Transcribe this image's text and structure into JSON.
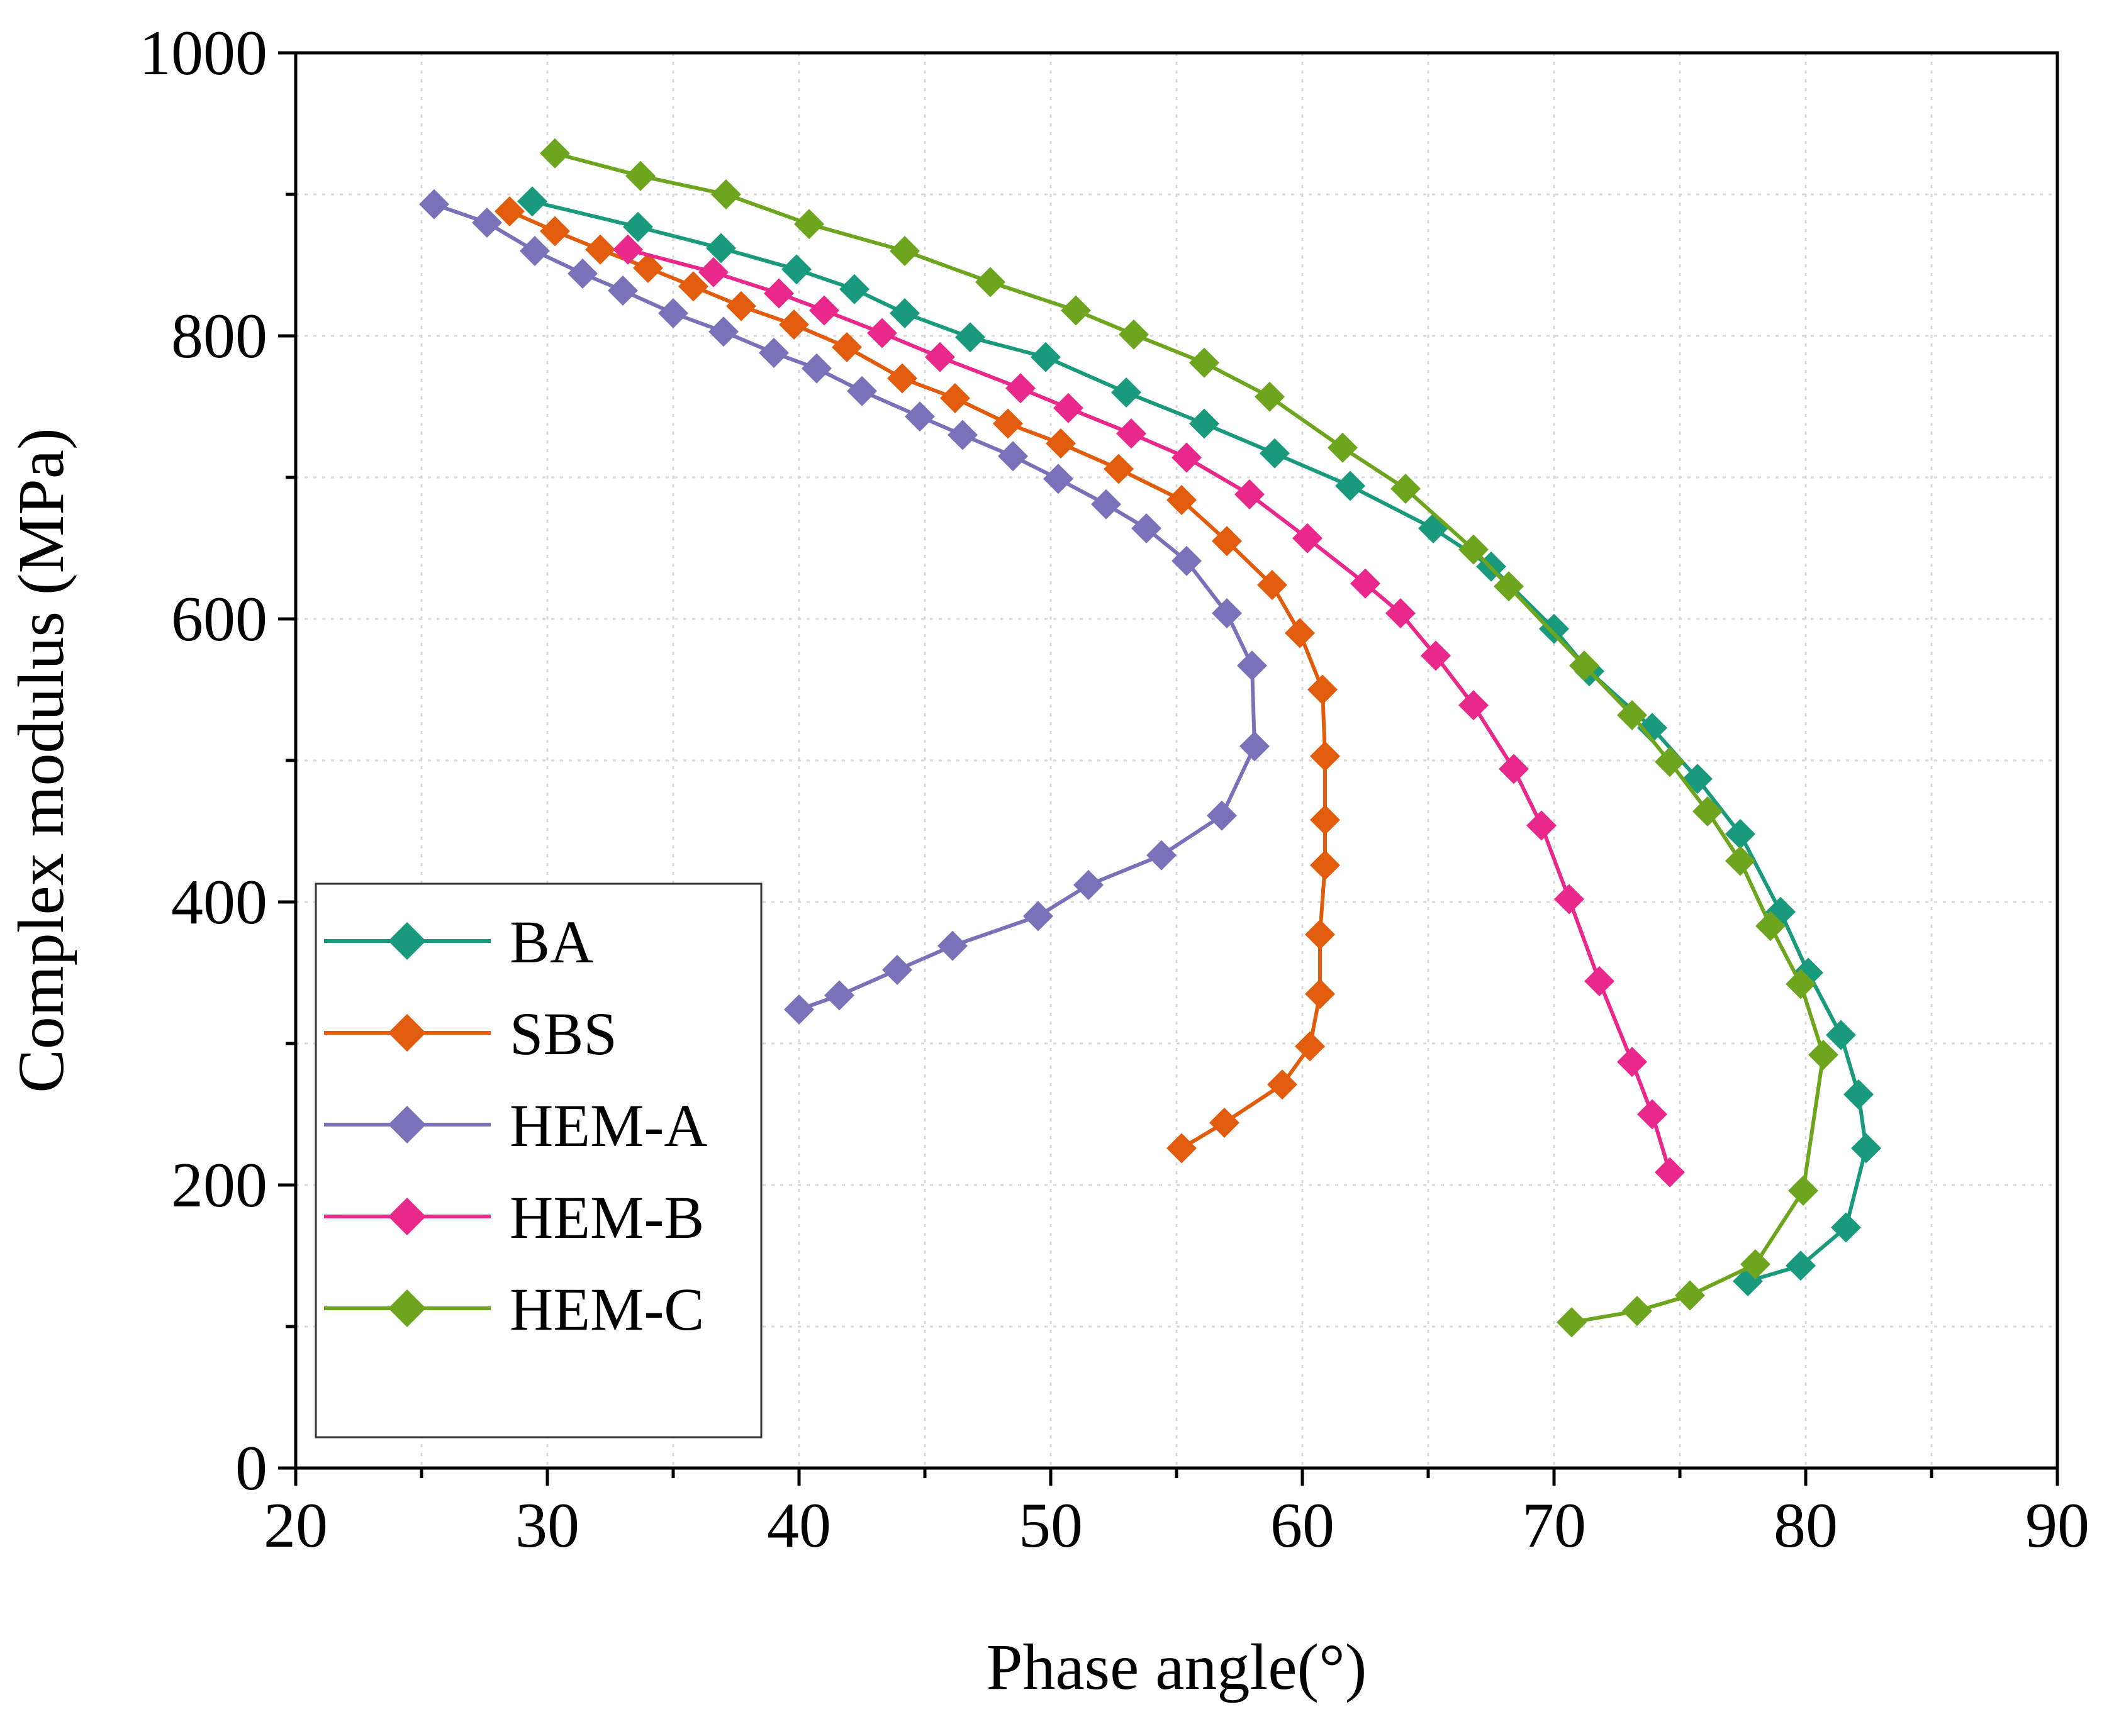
{
  "chart_data": {
    "type": "line",
    "title": "",
    "xlabel": "Phase angle(°)",
    "ylabel": "Complex modulus (MPa)",
    "xlim": [
      20,
      90
    ],
    "ylim": [
      0,
      1000
    ],
    "xticks": [
      20,
      30,
      40,
      50,
      60,
      70,
      80,
      90
    ],
    "yticks": [
      0,
      200,
      400,
      600,
      800,
      1000
    ],
    "grid": true,
    "legend_position": "bottom-left",
    "marker": "diamond",
    "series": [
      {
        "name": "BA",
        "color": "#1a9a7c",
        "points": [
          [
            29.4,
            895
          ],
          [
            33.6,
            877
          ],
          [
            36.9,
            862
          ],
          [
            39.9,
            847
          ],
          [
            42.2,
            833
          ],
          [
            44.2,
            816
          ],
          [
            46.8,
            799
          ],
          [
            49.8,
            785
          ],
          [
            53.0,
            760
          ],
          [
            56.1,
            738
          ],
          [
            58.9,
            717
          ],
          [
            61.9,
            694
          ],
          [
            65.2,
            664
          ],
          [
            67.5,
            637
          ],
          [
            70.0,
            593
          ],
          [
            71.4,
            563
          ],
          [
            73.9,
            523
          ],
          [
            75.7,
            487
          ],
          [
            77.4,
            448
          ],
          [
            79.0,
            393
          ],
          [
            80.1,
            350
          ],
          [
            81.4,
            306
          ],
          [
            82.1,
            264
          ],
          [
            82.4,
            226
          ],
          [
            81.6,
            170
          ],
          [
            79.8,
            143
          ],
          [
            77.7,
            132
          ]
        ]
      },
      {
        "name": "SBS",
        "color": "#e15c0c",
        "points": [
          [
            28.5,
            888
          ],
          [
            30.3,
            874
          ],
          [
            32.1,
            861
          ],
          [
            34.0,
            848
          ],
          [
            35.8,
            835
          ],
          [
            37.7,
            821
          ],
          [
            39.8,
            808
          ],
          [
            41.9,
            792
          ],
          [
            44.1,
            770
          ],
          [
            46.2,
            756
          ],
          [
            48.3,
            738
          ],
          [
            50.4,
            724
          ],
          [
            52.7,
            706
          ],
          [
            55.2,
            684
          ],
          [
            57.0,
            655
          ],
          [
            58.8,
            624
          ],
          [
            59.9,
            590
          ],
          [
            60.8,
            550
          ],
          [
            60.9,
            503
          ],
          [
            60.9,
            458
          ],
          [
            60.9,
            426
          ],
          [
            60.7,
            377
          ],
          [
            60.7,
            335
          ],
          [
            60.3,
            298
          ],
          [
            59.2,
            271
          ],
          [
            56.9,
            244
          ],
          [
            55.2,
            226
          ]
        ]
      },
      {
        "name": "HEM-A",
        "color": "#7a72b8",
        "points": [
          [
            25.5,
            893
          ],
          [
            27.6,
            880
          ],
          [
            29.5,
            860
          ],
          [
            31.4,
            844
          ],
          [
            33.0,
            832
          ],
          [
            35.0,
            816
          ],
          [
            37.0,
            803
          ],
          [
            39.0,
            788
          ],
          [
            40.7,
            777
          ],
          [
            42.5,
            761
          ],
          [
            44.8,
            743
          ],
          [
            46.5,
            730
          ],
          [
            48.5,
            715
          ],
          [
            50.3,
            699
          ],
          [
            52.2,
            681
          ],
          [
            53.8,
            664
          ],
          [
            55.4,
            641
          ],
          [
            57.0,
            604
          ],
          [
            58.0,
            567
          ],
          [
            58.1,
            510
          ],
          [
            56.8,
            461
          ],
          [
            54.4,
            433
          ],
          [
            51.5,
            412
          ],
          [
            49.5,
            390
          ],
          [
            46.1,
            369
          ],
          [
            43.9,
            352
          ],
          [
            41.6,
            334
          ],
          [
            40.0,
            324
          ]
        ]
      },
      {
        "name": "HEM-B",
        "color": "#e8288a",
        "points": [
          [
            33.2,
            861
          ],
          [
            36.6,
            845
          ],
          [
            39.2,
            830
          ],
          [
            41.0,
            818
          ],
          [
            43.3,
            802
          ],
          [
            45.6,
            785
          ],
          [
            48.8,
            763
          ],
          [
            50.7,
            749
          ],
          [
            53.2,
            731
          ],
          [
            55.4,
            714
          ],
          [
            57.9,
            688
          ],
          [
            60.2,
            657
          ],
          [
            62.5,
            625
          ],
          [
            63.9,
            604
          ],
          [
            65.3,
            574
          ],
          [
            66.8,
            539
          ],
          [
            68.4,
            494
          ],
          [
            69.5,
            454
          ],
          [
            70.6,
            402
          ],
          [
            71.8,
            344
          ],
          [
            73.1,
            287
          ],
          [
            73.9,
            250
          ],
          [
            74.6,
            209
          ]
        ]
      },
      {
        "name": "HEM-C",
        "color": "#6ea51f",
        "points": [
          [
            30.3,
            929
          ],
          [
            33.7,
            913
          ],
          [
            37.1,
            900
          ],
          [
            40.4,
            879
          ],
          [
            44.2,
            860
          ],
          [
            47.6,
            838
          ],
          [
            51.0,
            818
          ],
          [
            53.3,
            801
          ],
          [
            56.1,
            781
          ],
          [
            58.7,
            757
          ],
          [
            61.6,
            721
          ],
          [
            64.1,
            692
          ],
          [
            66.8,
            649
          ],
          [
            68.2,
            623
          ],
          [
            71.2,
            567
          ],
          [
            73.1,
            532
          ],
          [
            74.6,
            499
          ],
          [
            76.1,
            464
          ],
          [
            77.4,
            429
          ],
          [
            78.6,
            383
          ],
          [
            79.8,
            342
          ],
          [
            80.7,
            292
          ],
          [
            79.9,
            196
          ],
          [
            78.0,
            144
          ],
          [
            75.4,
            122
          ],
          [
            73.3,
            111
          ],
          [
            70.7,
            103
          ]
        ]
      }
    ]
  }
}
